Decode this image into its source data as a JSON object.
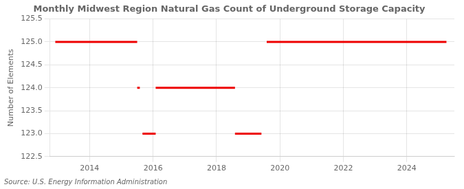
{
  "chart_data": {
    "type": "line",
    "title": "Monthly Midwest Region Natural Gas Count of Underground Storage Capacity",
    "ylabel": "Number of Elements",
    "source": "Source: U.S. Energy Information Administration",
    "color": "#ee0000",
    "segments": [
      {
        "y": 125.0,
        "x_start": 2012.917,
        "x_end": 2015.5
      },
      {
        "y": 124.0,
        "x_start": 2015.5,
        "x_end": 2015.583
      },
      {
        "y": 123.0,
        "x_start": 2015.667,
        "x_end": 2016.083
      },
      {
        "y": 124.0,
        "x_start": 2016.083,
        "x_end": 2018.583
      },
      {
        "y": 123.0,
        "x_start": 2018.583,
        "x_end": 2019.417
      },
      {
        "y": 125.0,
        "x_start": 2019.583,
        "x_end": 2025.25
      }
    ],
    "xlim": [
      2012.75,
      2025.5
    ],
    "xticks": [
      2014,
      2016,
      2018,
      2020,
      2022,
      2024
    ],
    "ylim": [
      122.5,
      125.5
    ],
    "yticks": [
      122.5,
      {
        "value": 123.0,
        "label": "123.0"
      },
      123.5,
      {
        "value": 124.0,
        "label": "124.0"
      },
      124.5,
      {
        "value": 125.0,
        "label": "125.0"
      },
      125.5
    ],
    "grid": true
  }
}
